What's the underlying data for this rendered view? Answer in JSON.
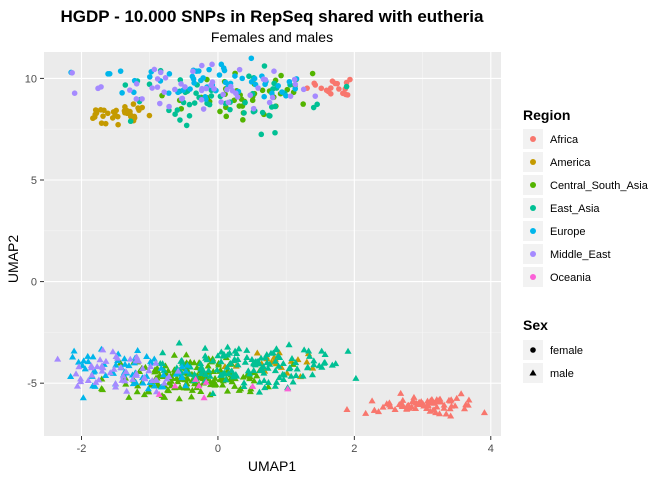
{
  "chart_data": {
    "type": "scatter",
    "title": "HGDP - 10.000 SNPs in RepSeq shared with eutheria",
    "subtitle": "Females and males",
    "xlabel": "UMAP1",
    "ylabel": "UMAP2",
    "xlim": [
      -2.55,
      4.15
    ],
    "ylim": [
      -7.6,
      11.3
    ],
    "x_ticks": [
      -2,
      0,
      2,
      4
    ],
    "y_ticks": [
      -5,
      0,
      5,
      10
    ],
    "x_tick_labels": [
      "-2",
      "0",
      "2",
      "4"
    ],
    "y_tick_labels": [
      "-5",
      "0",
      "5",
      "10"
    ],
    "grid": true,
    "legend_placement": "right",
    "legend_color": {
      "title": "Region",
      "entries": [
        {
          "label": "Africa",
          "color": "#F8766D"
        },
        {
          "label": "America",
          "color": "#C49A00"
        },
        {
          "label": "Central_South_Asia",
          "color": "#53B400"
        },
        {
          "label": "East_Asia",
          "color": "#00C094"
        },
        {
          "label": "Europe",
          "color": "#00B6EB"
        },
        {
          "label": "Middle_East",
          "color": "#A58AFF"
        },
        {
          "label": "Oceania",
          "color": "#FB61D7"
        }
      ]
    },
    "legend_shape": {
      "title": "Sex",
      "entries": [
        {
          "label": "female",
          "shape": "circle"
        },
        {
          "label": "male",
          "shape": "triangle"
        }
      ]
    },
    "clusters": [
      {
        "region": "Africa",
        "sex": "female",
        "center": [
          1.62,
          9.55
        ],
        "spread": [
          0.15,
          0.25
        ],
        "count": 18
      },
      {
        "region": "America",
        "sex": "female",
        "center": [
          -1.45,
          8.35
        ],
        "spread": [
          0.22,
          0.22
        ],
        "count": 34
      },
      {
        "region": "Central_South_Asia",
        "sex": "female",
        "center": [
          0.2,
          9.1
        ],
        "spread": [
          0.55,
          0.6
        ],
        "count": 42
      },
      {
        "region": "East_Asia",
        "sex": "female",
        "center": [
          0.1,
          8.9
        ],
        "spread": [
          0.7,
          0.65
        ],
        "count": 55
      },
      {
        "region": "Europe",
        "sex": "female",
        "center": [
          -0.2,
          9.9
        ],
        "spread": [
          0.75,
          0.45
        ],
        "count": 55
      },
      {
        "region": "Middle_East",
        "sex": "female",
        "center": [
          -0.2,
          9.6
        ],
        "spread": [
          0.75,
          0.55
        ],
        "count": 55
      },
      {
        "region": "Africa",
        "sex": "male",
        "center": [
          3.0,
          -6.1
        ],
        "spread": [
          0.4,
          0.22
        ],
        "count": 75
      },
      {
        "region": "America",
        "sex": "male",
        "center": [
          0.9,
          -4.0
        ],
        "spread": [
          0.35,
          0.35
        ],
        "count": 22
      },
      {
        "region": "Central_South_Asia",
        "sex": "male",
        "center": [
          -0.4,
          -4.7
        ],
        "spread": [
          0.55,
          0.45
        ],
        "count": 160
      },
      {
        "region": "East_Asia",
        "sex": "male",
        "center": [
          0.5,
          -4.2
        ],
        "spread": [
          0.6,
          0.5
        ],
        "count": 140
      },
      {
        "region": "Europe",
        "sex": "male",
        "center": [
          -1.3,
          -4.4
        ],
        "spread": [
          0.45,
          0.5
        ],
        "count": 60
      },
      {
        "region": "Middle_East",
        "sex": "male",
        "center": [
          -1.5,
          -4.4
        ],
        "spread": [
          0.45,
          0.45
        ],
        "count": 55
      },
      {
        "region": "Oceania",
        "sex": "male",
        "center": [
          -0.2,
          -5.1
        ],
        "spread": [
          0.7,
          0.4
        ],
        "count": 8
      }
    ]
  }
}
